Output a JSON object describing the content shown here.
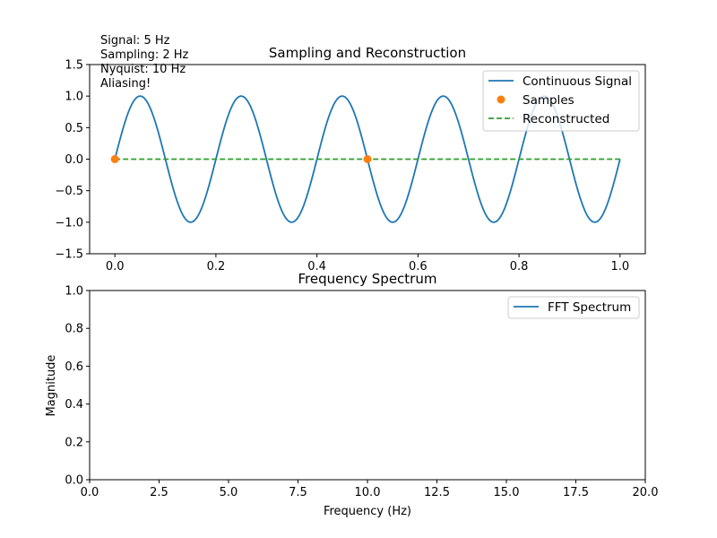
{
  "chart_data": [
    {
      "type": "line",
      "title": "Sampling and Reconstruction",
      "xlabel": "",
      "ylabel": "",
      "xlim": [
        -0.05,
        1.05
      ],
      "ylim": [
        -1.5,
        1.5
      ],
      "x_ticks": [
        "0.0",
        "0.2",
        "0.4",
        "0.6",
        "0.8",
        "1.0"
      ],
      "y_ticks": [
        "−1.5",
        "−1.0",
        "−0.5",
        "0.0",
        "0.5",
        "1.0",
        "1.5"
      ],
      "annotations": [
        "Signal: 5 Hz",
        "Sampling: 2 Hz",
        "Nyquist: 10 Hz",
        "Aliasing!"
      ],
      "legend_position": "top-right",
      "grid": false,
      "series": [
        {
          "name": "Continuous Signal",
          "kind": "line",
          "color": "#1f77b4",
          "function": "sin(2*pi*5*t)",
          "frequency_hz": 5,
          "amplitude": 1.0,
          "x_range": [
            0.0,
            1.0
          ]
        },
        {
          "name": "Samples",
          "kind": "scatter",
          "color": "#ff7f0e",
          "points": [
            [
              0.0,
              0.0
            ],
            [
              0.5,
              0.0
            ]
          ]
        },
        {
          "name": "Reconstructed",
          "kind": "dashed-line",
          "color": "#2ca02c",
          "points": [
            [
              0.0,
              0.0
            ],
            [
              1.0,
              0.0
            ]
          ]
        }
      ]
    },
    {
      "type": "line",
      "title": "Frequency Spectrum",
      "xlabel": "Frequency (Hz)",
      "ylabel": "Magnitude",
      "xlim": [
        0,
        20
      ],
      "ylim": [
        0,
        1
      ],
      "x_ticks": [
        "0.0",
        "2.5",
        "5.0",
        "7.5",
        "10.0",
        "12.5",
        "15.0",
        "17.5",
        "20.0"
      ],
      "y_ticks": [
        "0.0",
        "0.2",
        "0.4",
        "0.6",
        "0.8",
        "1.0"
      ],
      "legend_position": "top-right",
      "grid": false,
      "series": [
        {
          "name": "FFT Spectrum",
          "kind": "line",
          "color": "#1f77b4",
          "points": []
        }
      ]
    }
  ]
}
